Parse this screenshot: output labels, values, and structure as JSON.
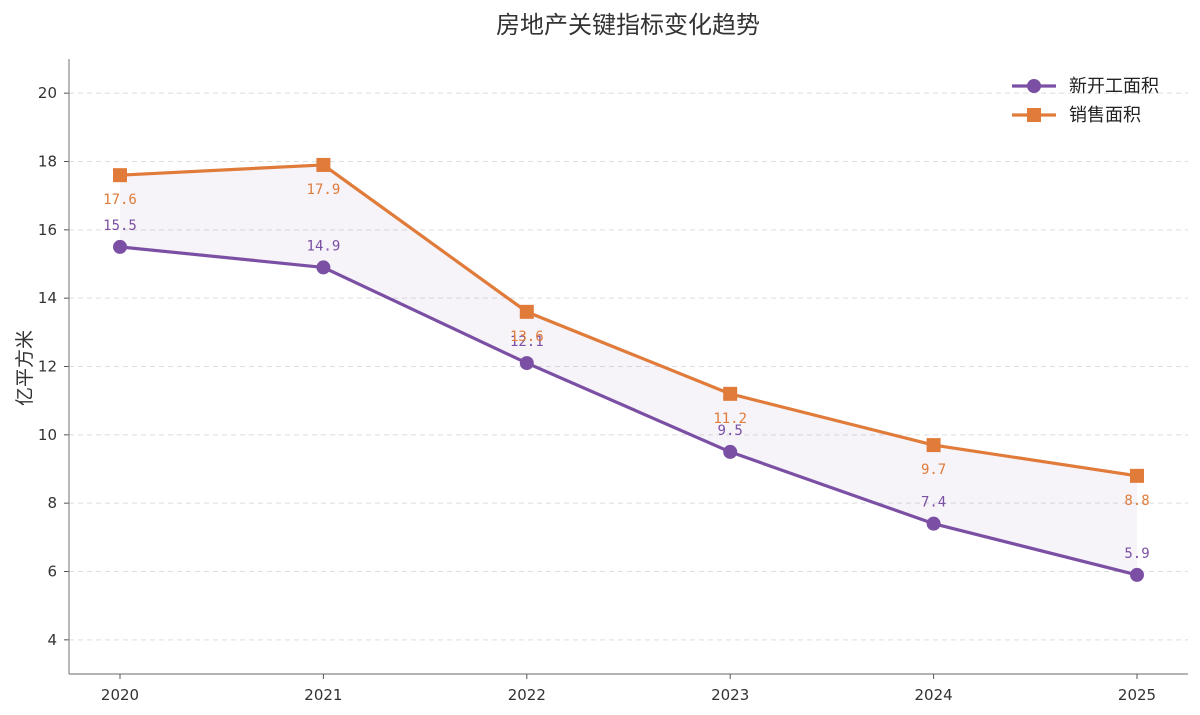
{
  "chart_data": {
    "type": "line",
    "title": "房地产关键指标变化趋势",
    "ylabel": "亿平方米",
    "xlabel": "",
    "categories": [
      "2020",
      "2021",
      "2022",
      "2023",
      "2024",
      "2025"
    ],
    "yticks": [
      4,
      6,
      8,
      10,
      12,
      14,
      16,
      18,
      20
    ],
    "ylim": [
      3,
      21
    ],
    "grid": "horizontal-dashed",
    "legend_position": "top-right",
    "fill_between_series": true,
    "series": [
      {
        "name": "新开工面积",
        "color": "#7b4fa3",
        "marker": "circle",
        "values": [
          15.5,
          14.9,
          12.1,
          9.5,
          7.4,
          5.9
        ],
        "labels": [
          "15.5",
          "14.9",
          "12.1",
          "9.5",
          "7.4",
          "5.9"
        ]
      },
      {
        "name": "销售面积",
        "color": "#e07b3a",
        "marker": "square",
        "values": [
          17.6,
          17.9,
          13.6,
          11.2,
          9.7,
          8.8
        ],
        "labels": [
          "17.6",
          "17.9",
          "13.6",
          "11.2",
          "9.7",
          "8.8"
        ]
      }
    ]
  }
}
